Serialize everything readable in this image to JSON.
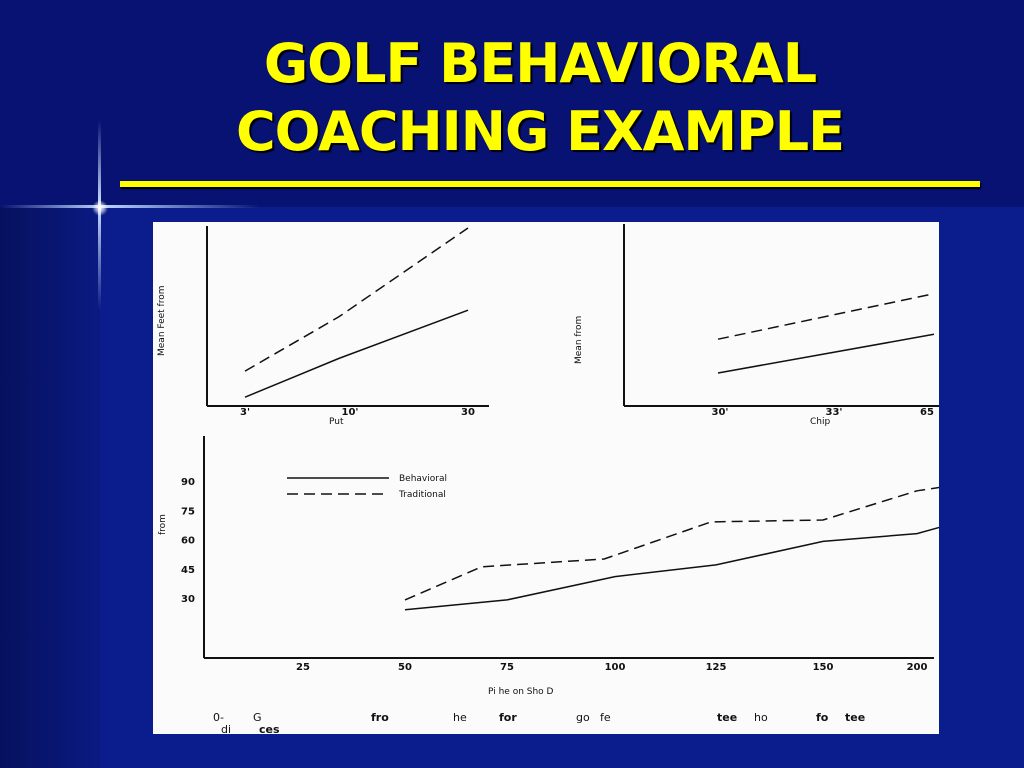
{
  "slide": {
    "title_line1": "GOLF BEHAVIORAL",
    "title_line2": "COACHING EXAMPLE"
  },
  "colors": {
    "background": "#0b1d8c",
    "title": "#ffff00",
    "panel": "#fbfbfb",
    "ink": "#111111"
  },
  "chart_data": [
    {
      "id": "putting",
      "type": "line",
      "ylabel": "Mean Feet from",
      "xlabel": "Put",
      "x_ticks": [
        "3'",
        "10'",
        "30"
      ],
      "series": [
        {
          "style": "solid",
          "points": [
            [
              0,
              5
            ],
            [
              0.42,
              45
            ],
            [
              1,
              95
            ]
          ]
        },
        {
          "style": "dashed",
          "points": [
            [
              0,
              32
            ],
            [
              0.42,
              88
            ],
            [
              1,
              180
            ]
          ]
        }
      ],
      "ylim": [
        0,
        180
      ]
    },
    {
      "id": "chipping",
      "type": "line",
      "ylabel": "Mean from",
      "xlabel": "Chip",
      "x_ticks": [
        "30'",
        "33'",
        "65"
      ],
      "series": [
        {
          "style": "solid",
          "points": [
            [
              0,
              30
            ],
            [
              1,
              70
            ]
          ]
        },
        {
          "style": "dashed",
          "points": [
            [
              0,
              65
            ],
            [
              1,
              112
            ]
          ]
        }
      ],
      "ylim": [
        0,
        180
      ]
    },
    {
      "id": "pitch",
      "type": "line",
      "ylabel": "from",
      "xlabel": "Pi he on Sho D",
      "yticks": [
        30,
        45,
        60,
        75,
        90
      ],
      "xticks": [
        25,
        50,
        75,
        100,
        125,
        150,
        200
      ],
      "legend": {
        "placement": "top-left",
        "entries": [
          "Behavioral",
          "Traditional"
        ]
      },
      "series": [
        {
          "name": "Behavioral",
          "style": "solid",
          "points": [
            [
              1,
              24
            ],
            [
              2,
              29
            ],
            [
              3,
              41
            ],
            [
              4,
              47
            ],
            [
              5,
              59
            ],
            [
              6,
              63
            ],
            [
              7.2,
              79
            ]
          ]
        },
        {
          "name": "Traditional",
          "style": "dashed",
          "points": [
            [
              1,
              29
            ],
            [
              1.75,
              46
            ],
            [
              2.9,
              50
            ],
            [
              3.95,
              69
            ],
            [
              5,
              70
            ],
            [
              6,
              85
            ],
            [
              6.7,
              90
            ],
            [
              6.95,
              95
            ]
          ]
        }
      ],
      "ylim": [
        0,
        105
      ]
    }
  ],
  "caption": {
    "fragments": [
      {
        "text": "0-"
      },
      {
        "text": "G"
      },
      {
        "text": "fro"
      },
      {
        "text": "he"
      },
      {
        "text": "for"
      },
      {
        "text": "go"
      },
      {
        "text": "fe"
      },
      {
        "text": "tee"
      },
      {
        "text": "ho"
      },
      {
        "text": "fo"
      },
      {
        "text": "tee"
      },
      {
        "text": "di"
      },
      {
        "text": "ces"
      }
    ]
  }
}
